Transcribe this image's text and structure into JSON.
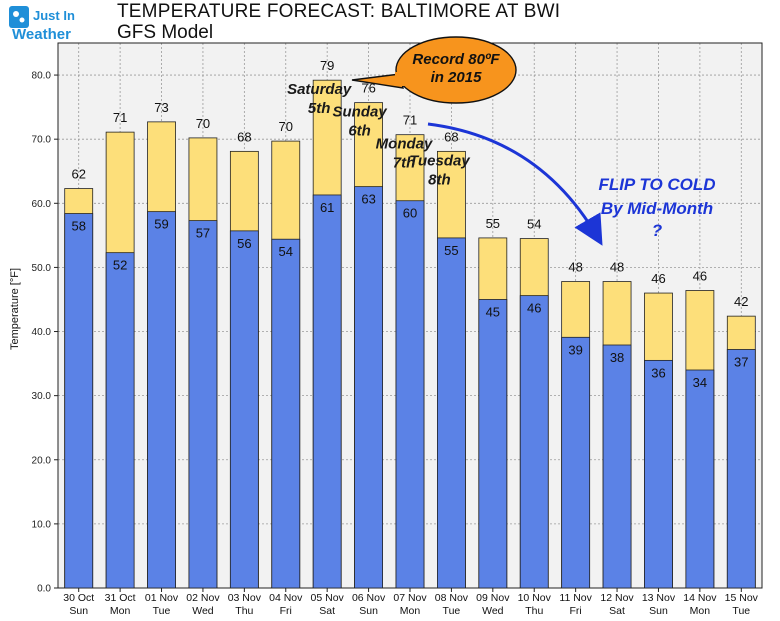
{
  "brand": {
    "line1": "Just In",
    "line2": "Weather",
    "colors": {
      "box": "#1f8fd8",
      "text": "#1f8fd8"
    }
  },
  "header": {
    "title": "TEMPERATURE FORECAST: BALTIMORE AT BWI",
    "subtitle": "GFS Model"
  },
  "chart_data": {
    "type": "bar",
    "ylabel": "Temperature [°F]",
    "xlabel": "",
    "ylim": [
      0,
      85
    ],
    "yticks": [
      "0.0",
      "10.0",
      "20.0",
      "30.0",
      "40.0",
      "50.0",
      "60.0",
      "70.0",
      "80.0"
    ],
    "grid": true,
    "categories": [
      {
        "date": "30 Oct",
        "day": "Sun"
      },
      {
        "date": "31 Oct",
        "day": "Mon"
      },
      {
        "date": "01 Nov",
        "day": "Tue"
      },
      {
        "date": "02 Nov",
        "day": "Wed"
      },
      {
        "date": "03 Nov",
        "day": "Thu"
      },
      {
        "date": "04 Nov",
        "day": "Fri"
      },
      {
        "date": "05 Nov",
        "day": "Sat"
      },
      {
        "date": "06 Nov",
        "day": "Sun"
      },
      {
        "date": "07 Nov",
        "day": "Mon"
      },
      {
        "date": "08 Nov",
        "day": "Tue"
      },
      {
        "date": "09 Nov",
        "day": "Wed"
      },
      {
        "date": "10 Nov",
        "day": "Thu"
      },
      {
        "date": "11 Nov",
        "day": "Fri"
      },
      {
        "date": "12 Nov",
        "day": "Sat"
      },
      {
        "date": "13 Nov",
        "day": "Sun"
      },
      {
        "date": "14 Nov",
        "day": "Mon"
      },
      {
        "date": "15 Nov",
        "day": "Tue"
      }
    ],
    "series": [
      {
        "key": "high",
        "values": [
          62.3,
          71.1,
          72.7,
          70.2,
          68.1,
          69.7,
          79.2,
          75.7,
          70.7,
          68.1,
          54.6,
          54.5,
          47.8,
          47.8,
          46.0,
          46.4,
          42.4
        ],
        "labels": [
          "62",
          "71",
          "73",
          "70",
          "68",
          "70",
          "79",
          "76",
          "71",
          "68",
          "55",
          "54",
          "48",
          "48",
          "46",
          "46",
          "42"
        ],
        "color": "#fddf7a"
      },
      {
        "key": "low",
        "values": [
          58.4,
          52.3,
          58.7,
          57.3,
          55.7,
          54.4,
          61.3,
          62.6,
          60.4,
          54.6,
          45.0,
          45.6,
          39.1,
          37.9,
          35.5,
          34.0,
          37.2
        ],
        "labels": [
          "58",
          "52",
          "59",
          "57",
          "56",
          "54",
          "61",
          "63",
          "60",
          "55",
          "45",
          "46",
          "39",
          "38",
          "36",
          "34",
          "37"
        ],
        "color": "#5b82e6"
      }
    ],
    "annotations": {
      "days": [
        {
          "lines": [
            "Saturday",
            "5th"
          ],
          "index": 6
        },
        {
          "lines": [
            "Sunday",
            "6th"
          ],
          "index": 7
        },
        {
          "lines": [
            "Monday",
            "7th"
          ],
          "index": 8
        },
        {
          "lines": [
            "Tuesday",
            "8th"
          ],
          "index": 9
        }
      ],
      "record": {
        "lines": [
          "Record 80ºF",
          "in 2015"
        ],
        "fill": "#f7941d"
      },
      "flip": {
        "lines": [
          "FLIP TO COLD",
          "By Mid-Month",
          "?"
        ],
        "color": "#1c35d6"
      }
    }
  }
}
